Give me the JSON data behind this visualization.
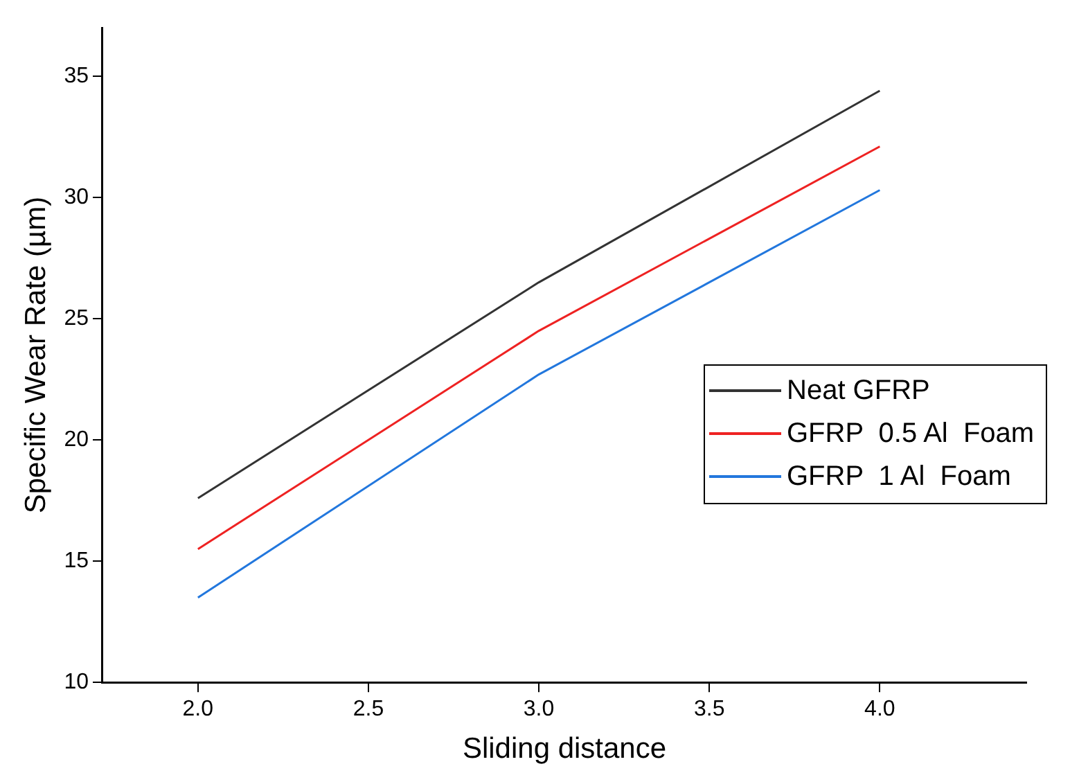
{
  "chart_data": {
    "type": "line",
    "xlabel": "Sliding distance",
    "ylabel": "Specific Wear Rate (µm)",
    "x": [
      2.0,
      3.0,
      4.0
    ],
    "series": [
      {
        "name": "Neat GFRP",
        "color": "#333333",
        "values": [
          17.6,
          26.5,
          34.4
        ]
      },
      {
        "name": "GFRP  0.5 Al  Foam",
        "color": "#ee2222",
        "values": [
          15.5,
          24.5,
          32.1
        ]
      },
      {
        "name": "GFRP  1 Al  Foam",
        "color": "#2277dd",
        "values": [
          13.5,
          22.7,
          30.3
        ]
      }
    ],
    "xlim": [
      1.72,
      4.43
    ],
    "xticks": [
      {
        "value": 2,
        "label": "2.0"
      },
      {
        "value": 2.5,
        "label": "2.5"
      },
      {
        "value": 3,
        "label": "3.0"
      },
      {
        "value": 3.5,
        "label": "3.5"
      },
      {
        "value": 4,
        "label": "4.0"
      }
    ],
    "ylim": [
      10,
      37
    ],
    "yticks": [
      10,
      15,
      20,
      25,
      30,
      35
    ],
    "grid": false,
    "legend": "right",
    "marker": "none",
    "line_style": "solid"
  }
}
